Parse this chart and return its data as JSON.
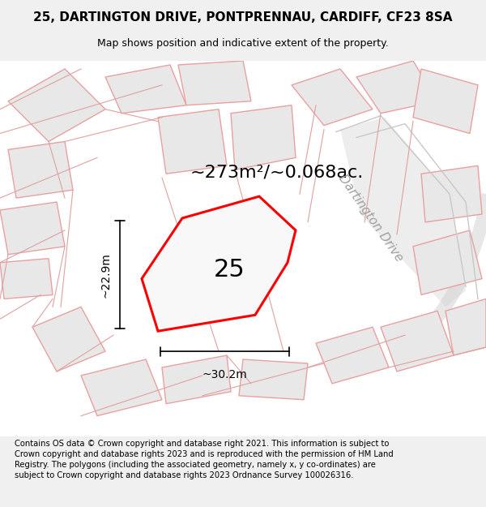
{
  "title_line1": "25, DARTINGTON DRIVE, PONTPRENNAU, CARDIFF, CF23 8SA",
  "title_line2": "Map shows position and indicative extent of the property.",
  "area_text": "~273m²/~0.068ac.",
  "house_number": "25",
  "width_label": "~30.2m",
  "height_label": "~22.9m",
  "street_label": "Dartington Drive",
  "footer_text": "Contains OS data © Crown copyright and database right 2021. This information is subject to Crown copyright and database rights 2023 and is reproduced with the permission of HM Land Registry. The polygons (including the associated geometry, namely x, y co-ordinates) are subject to Crown copyright and database rights 2023 Ordnance Survey 100026316.",
  "bg_color": "#f0f0f0",
  "map_bg_color": "#ffffff",
  "plot_fill_color": "#e8e8e8",
  "plot_border_color": "#ff0000",
  "neighbor_fill_color": "#f5f5f5",
  "neighbor_border_color": "#f0a0a0",
  "road_color": "#d0d0d0",
  "title_fontsize": 11,
  "subtitle_fontsize": 9,
  "footer_fontsize": 7.2,
  "area_fontsize": 16,
  "house_number_fontsize": 22,
  "label_fontsize": 10,
  "street_label_fontsize": 11
}
